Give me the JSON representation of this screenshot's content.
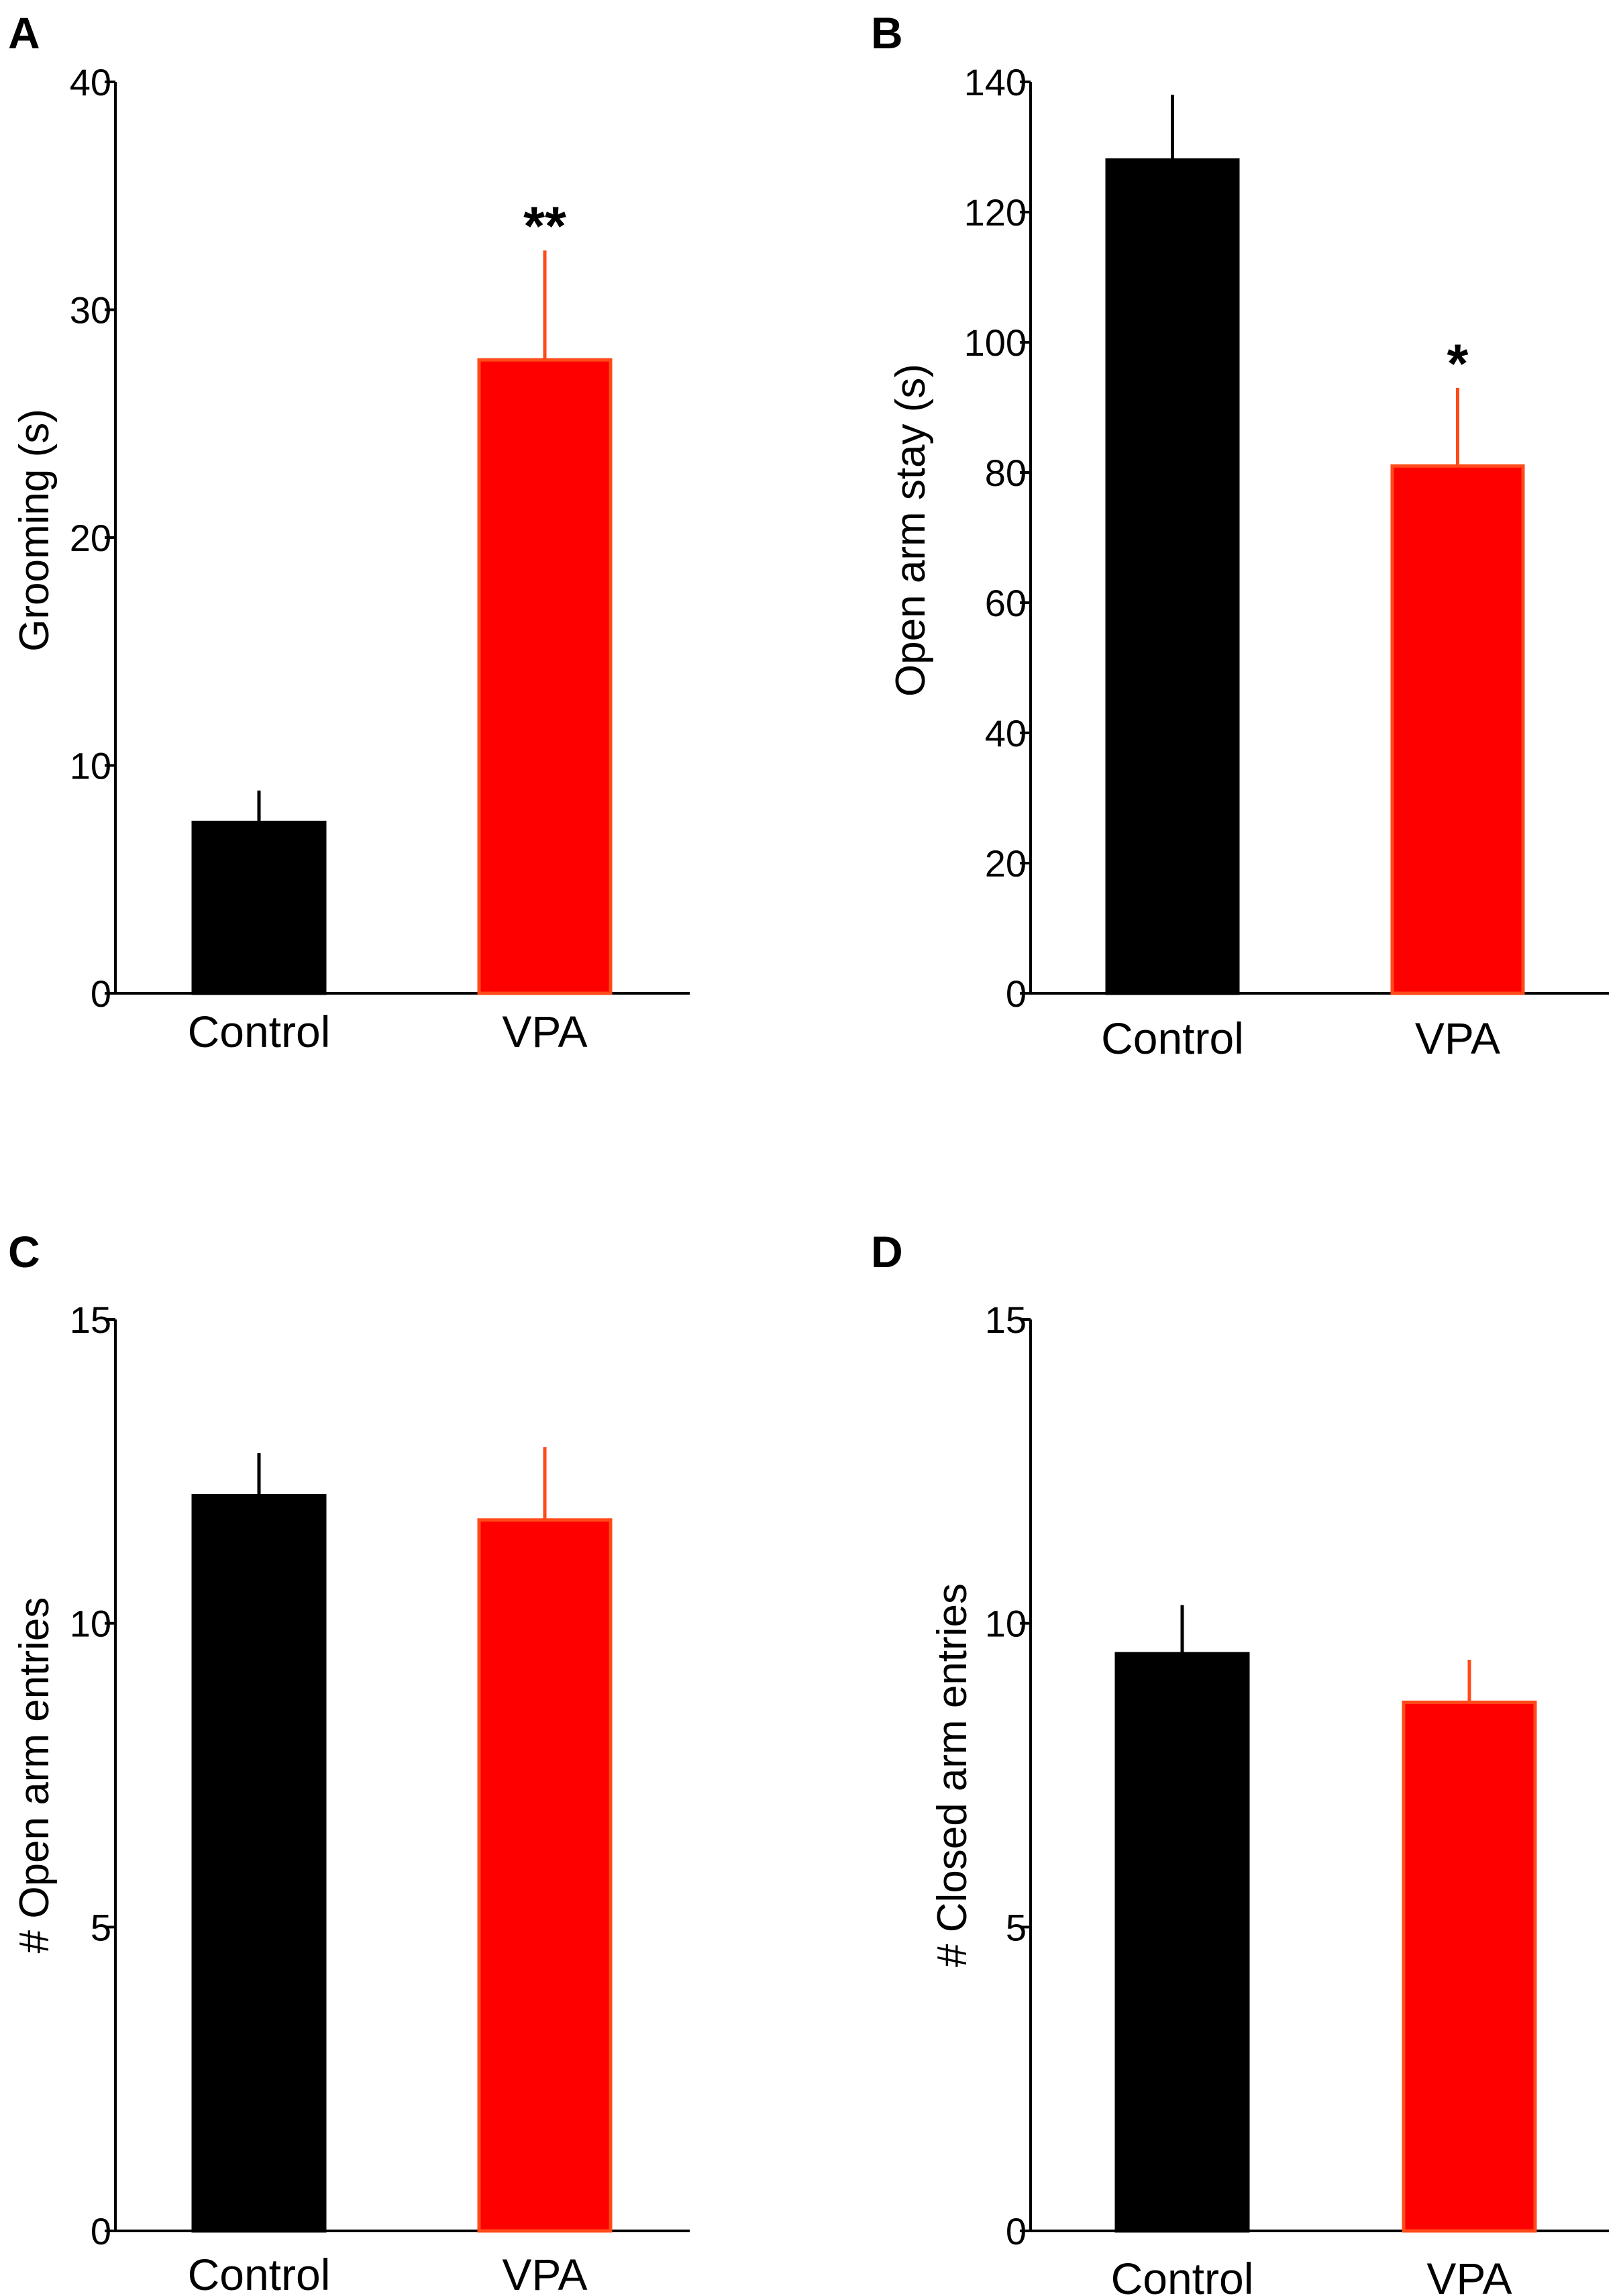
{
  "colors": {
    "control": "#000000",
    "vpa": "#ff0000",
    "vpa_edge": "#ff4a1a",
    "axis": "#000000"
  },
  "chart_data": [
    {
      "panel": "A",
      "type": "bar",
      "categories": [
        "Control",
        "VPA"
      ],
      "values": [
        7.5,
        27.8
      ],
      "errors": [
        1.4,
        4.8
      ],
      "ylabel": "Grooming (s)",
      "xlabel": "",
      "ylim": [
        0,
        40
      ],
      "yticks": [
        "0",
        "10",
        "20",
        "30",
        "40"
      ],
      "significance": [
        "",
        "**"
      ],
      "grid": false
    },
    {
      "panel": "B",
      "type": "bar",
      "categories": [
        "Control",
        "VPA"
      ],
      "values": [
        128,
        81
      ],
      "errors": [
        10,
        12
      ],
      "ylabel": "Open arm stay (s)",
      "xlabel": "",
      "ylim": [
        0,
        140
      ],
      "yticks": [
        "0",
        "20",
        "40",
        "60",
        "80",
        "100",
        "120",
        "140"
      ],
      "significance": [
        "",
        "*"
      ],
      "grid": false
    },
    {
      "panel": "C",
      "type": "bar",
      "categories": [
        "Control",
        "VPA"
      ],
      "values": [
        12.1,
        11.7
      ],
      "errors": [
        0.7,
        1.2
      ],
      "ylabel": "# Open arm entries",
      "xlabel": "",
      "ylim": [
        0,
        15
      ],
      "yticks": [
        "0",
        "5",
        "10",
        "15"
      ],
      "significance": [
        "",
        ""
      ],
      "grid": false
    },
    {
      "panel": "D",
      "type": "bar",
      "categories": [
        "Control",
        "VPA"
      ],
      "values": [
        9.5,
        8.7
      ],
      "errors": [
        0.8,
        0.7
      ],
      "ylabel": "# Closed arm entries",
      "xlabel": "",
      "ylim": [
        0,
        15
      ],
      "yticks": [
        "0",
        "5",
        "10",
        "15"
      ],
      "significance": [
        "",
        ""
      ],
      "grid": false
    }
  ]
}
